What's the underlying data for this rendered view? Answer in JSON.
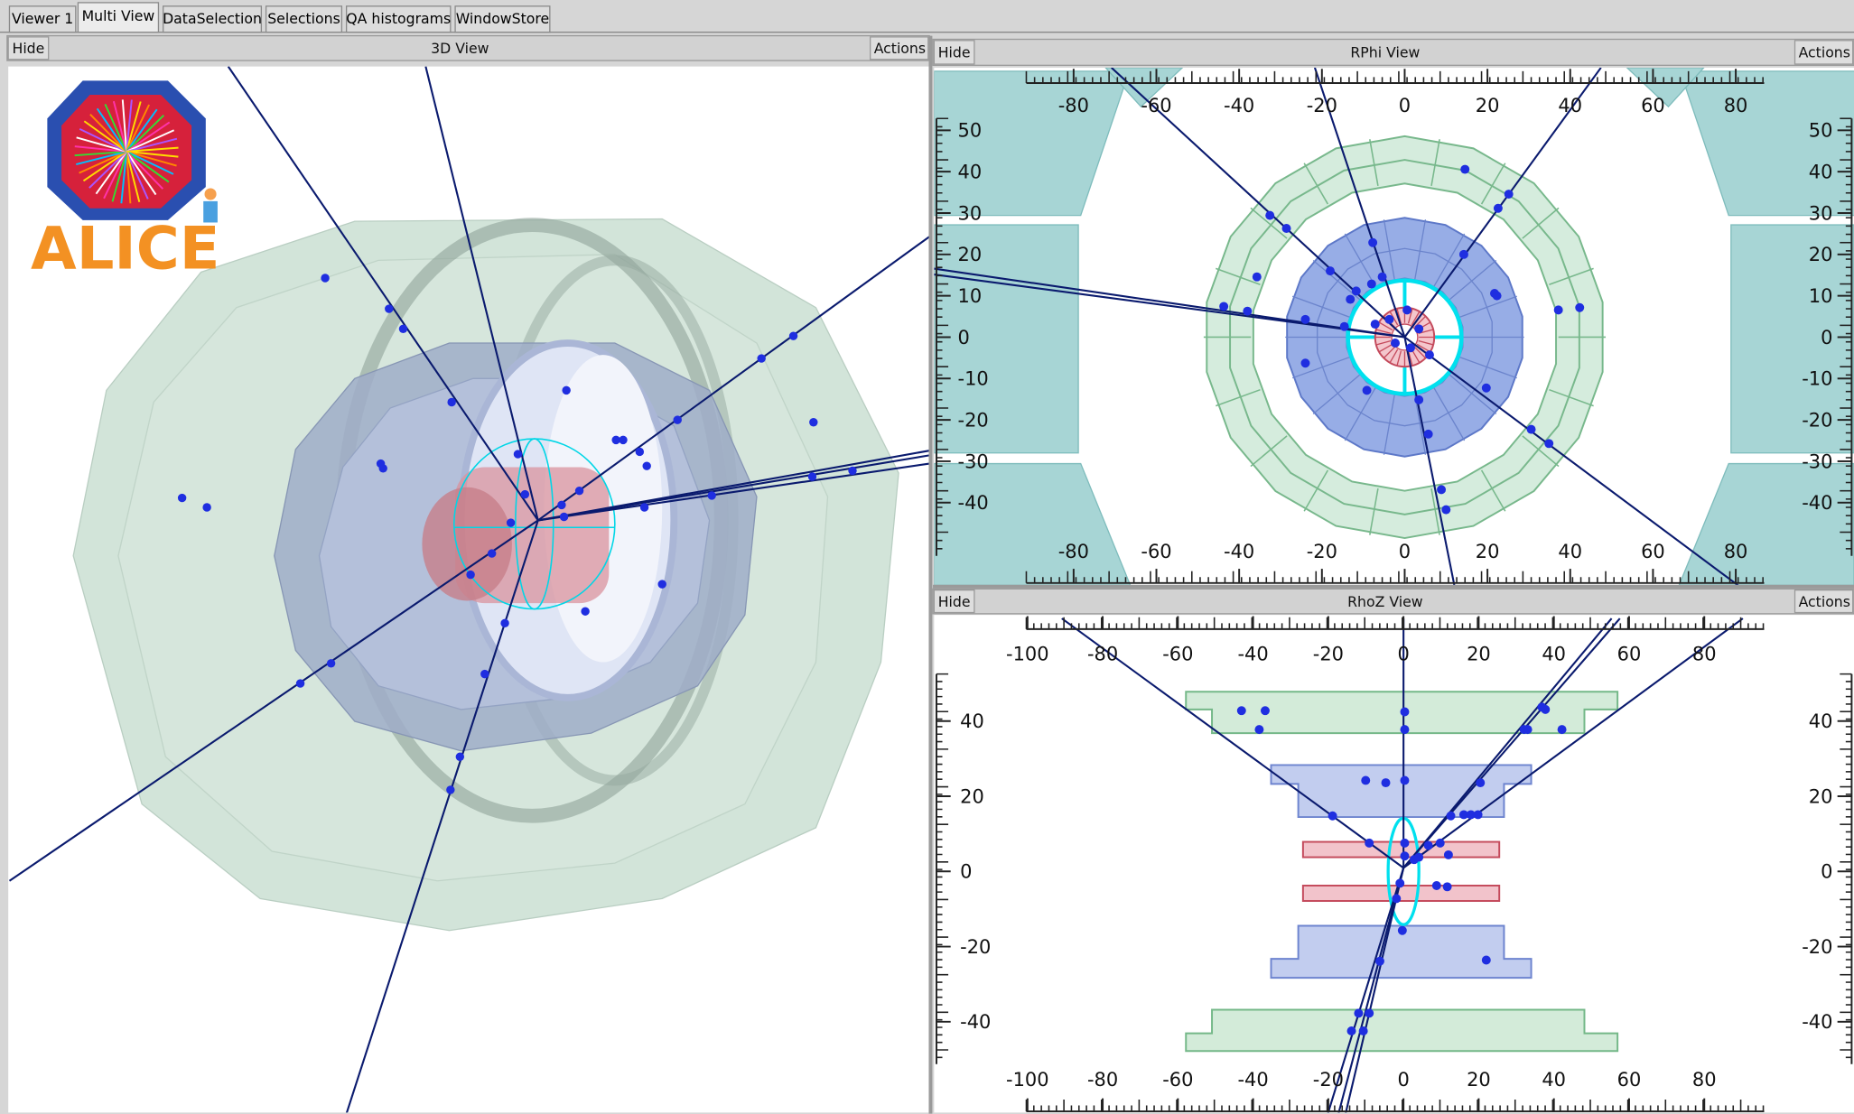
{
  "tabs": [
    "Viewer 1",
    "Multi View",
    "DataSelection",
    "Selections",
    "QA histograms",
    "WindowStore"
  ],
  "logo": "ALICE",
  "panels": [
    {
      "hide": "Hide",
      "title": "3D View",
      "actions": "Actions"
    },
    {
      "hide": "Hide",
      "title": "RPhi View",
      "actions": "Actions"
    },
    {
      "hide": "Hide",
      "title": "RhoZ View",
      "actions": "Actions"
    }
  ],
  "rphi": {
    "xticks": [
      -80,
      -60,
      -40,
      -20,
      0,
      20,
      40,
      60,
      80
    ],
    "yticks": [
      50,
      40,
      30,
      20,
      10,
      0,
      -10,
      -20,
      -30,
      -40
    ]
  },
  "rhoz": {
    "xticks": [
      -100,
      -80,
      -60,
      -40,
      -20,
      0,
      20,
      40,
      60,
      80
    ],
    "yticks": [
      40,
      20,
      0,
      -20,
      -40
    ]
  }
}
